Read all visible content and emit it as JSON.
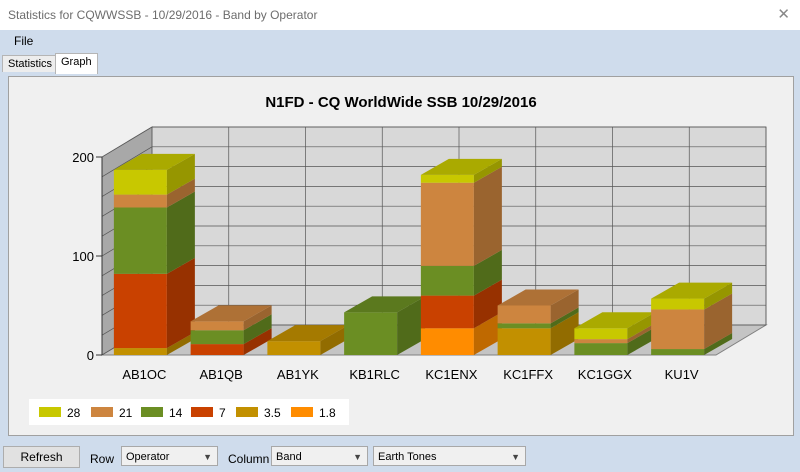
{
  "window": {
    "title": "Statistics for CQWWSSB - 10/29/2016 - Band by Operator",
    "close_glyph": "✕"
  },
  "menu": {
    "file": "File"
  },
  "tabs": [
    {
      "label": "Statistics"
    },
    {
      "label": "Graph"
    }
  ],
  "controls": {
    "refresh": "Refresh",
    "row_label": "Row",
    "row_value": "Operator",
    "column_label": "Column",
    "column_value": "Band",
    "theme_value": "Earth Tones"
  },
  "chart_data": {
    "type": "bar",
    "stacked": true,
    "three_d": true,
    "title": "N1FD - CQ WorldWide SSB 10/29/2016",
    "categories": [
      "AB1OC",
      "AB1QB",
      "AB1YK",
      "KB1RLC",
      "KC1ENX",
      "KC1FFX",
      "KC1GGX",
      "KU1V"
    ],
    "ylim": [
      0,
      200
    ],
    "yticks": [
      "0",
      "100",
      "200"
    ],
    "legend_position": "bottom-left",
    "grid": true,
    "series": [
      {
        "name": "1.8",
        "color": "#ff8c00",
        "values": [
          0,
          0,
          0,
          0,
          27,
          0,
          0,
          0
        ]
      },
      {
        "name": "3.5",
        "color": "#c29000",
        "values": [
          7,
          0,
          14,
          0,
          0,
          27,
          0,
          0
        ]
      },
      {
        "name": "7",
        "color": "#c94100",
        "values": [
          75,
          11,
          0,
          0,
          33,
          0,
          0,
          0
        ]
      },
      {
        "name": "14",
        "color": "#6b8e23",
        "values": [
          67,
          14,
          0,
          43,
          30,
          5,
          12,
          6
        ]
      },
      {
        "name": "21",
        "color": "#cd853f",
        "values": [
          13,
          9,
          0,
          0,
          84,
          18,
          4,
          40
        ]
      },
      {
        "name": "28",
        "color": "#c8c800",
        "values": [
          25,
          0,
          0,
          0,
          8,
          0,
          11,
          11
        ]
      }
    ]
  }
}
